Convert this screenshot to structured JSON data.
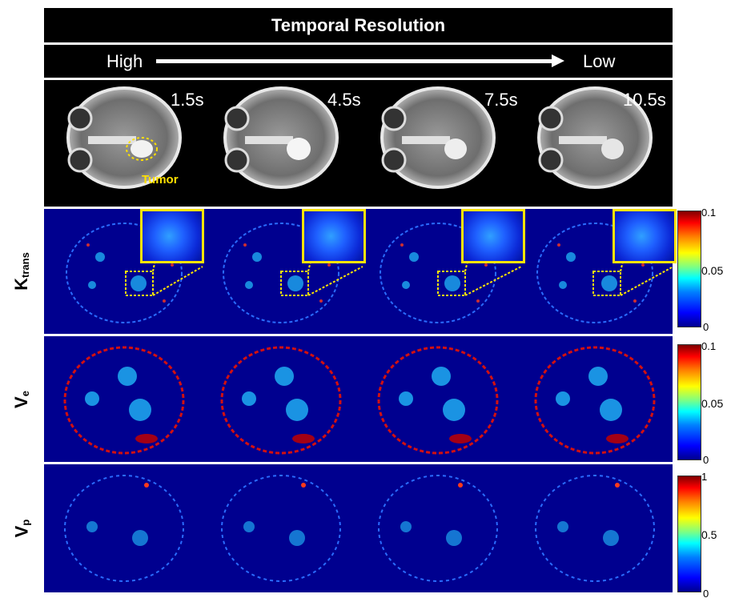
{
  "header": {
    "title": "Temporal Resolution",
    "arrow_left": "High",
    "arrow_right": "Low"
  },
  "columns": [
    {
      "time": "1.5s"
    },
    {
      "time": "4.5s"
    },
    {
      "time": "7.5s"
    },
    {
      "time": "10.5s"
    }
  ],
  "annotation": {
    "tumor": "Tumor"
  },
  "rows": {
    "ktrans": {
      "main": "K",
      "sub": "trans",
      "scale_max": "0.1",
      "scale_mid": "0.05",
      "scale_min": "0"
    },
    "ve": {
      "main": "V",
      "sub": "e",
      "scale_max": "0.1",
      "scale_mid": "0.05",
      "scale_min": "0"
    },
    "vp": {
      "main": "V",
      "sub": "p",
      "scale_max": "1",
      "scale_mid": "0.5",
      "scale_min": "0"
    }
  },
  "colors": {
    "highlight": "#ffe400",
    "map_background": "#00008f"
  }
}
